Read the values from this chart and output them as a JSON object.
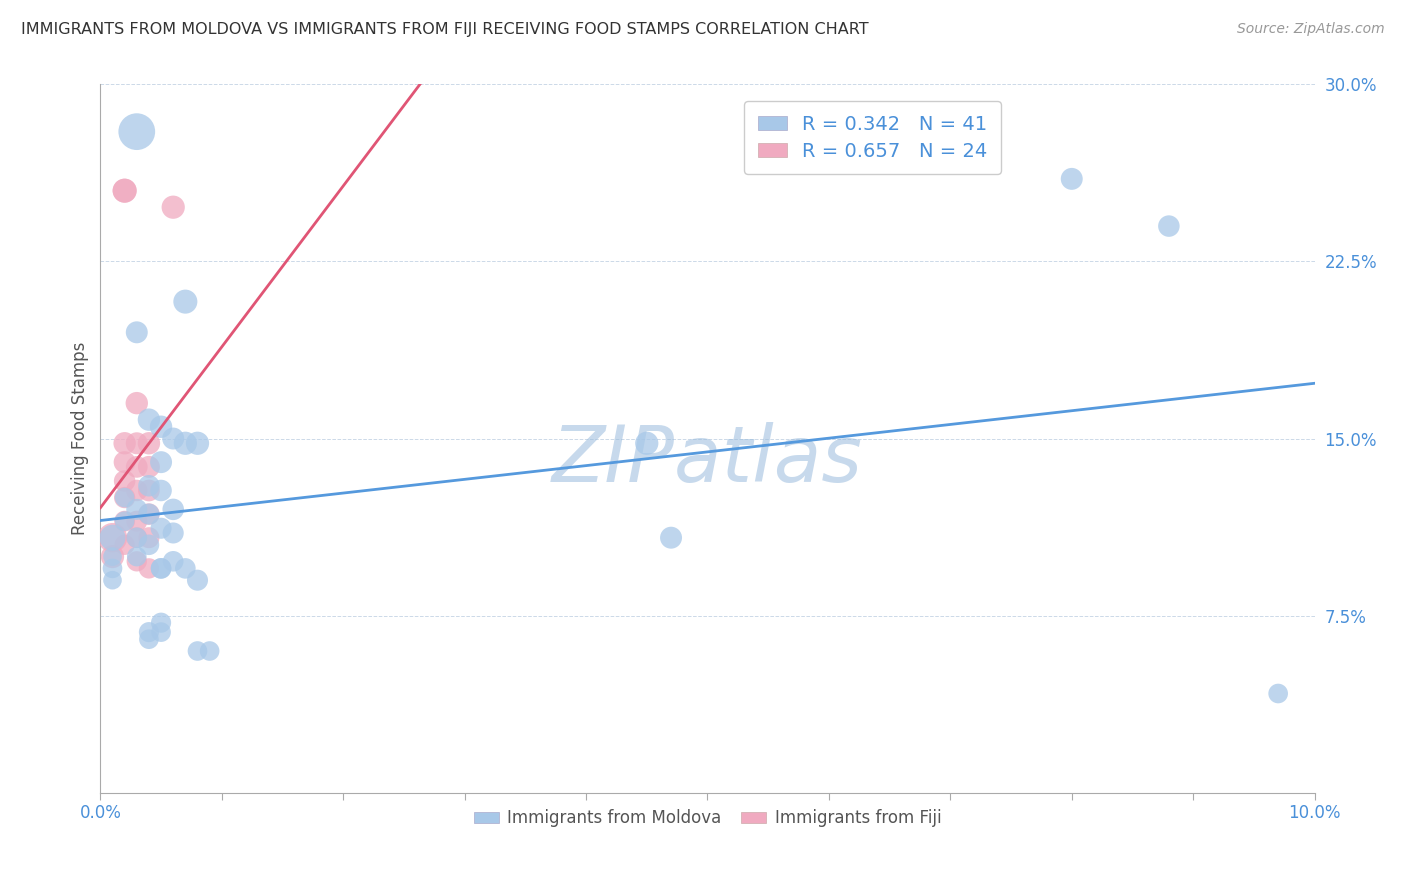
{
  "title": "IMMIGRANTS FROM MOLDOVA VS IMMIGRANTS FROM FIJI RECEIVING FOOD STAMPS CORRELATION CHART",
  "source": "Source: ZipAtlas.com",
  "ylabel": "Receiving Food Stamps",
  "xlim": [
    0.0,
    0.1
  ],
  "ylim": [
    0.0,
    0.3
  ],
  "xtick_positions": [
    0.0,
    0.1
  ],
  "xtick_labels": [
    "0.0%",
    "10.0%"
  ],
  "ytick_positions": [
    0.0,
    0.075,
    0.15,
    0.225,
    0.3
  ],
  "ytick_labels": [
    "",
    "7.5%",
    "15.0%",
    "22.5%",
    "30.0%"
  ],
  "moldova_color": "#a8c8e8",
  "fiji_color": "#f0aac0",
  "moldova_line_color": "#5599dd",
  "fiji_line_color": "#e05575",
  "fiji_dash_color": "#ccaaaa",
  "watermark": "ZIPatlas",
  "watermark_color": "#99bbdd",
  "moldova_R": 0.342,
  "moldova_N": 41,
  "fiji_R": 0.657,
  "fiji_N": 24,
  "moldova_points": [
    [
      0.001,
      0.108
    ],
    [
      0.001,
      0.095
    ],
    [
      0.001,
      0.1
    ],
    [
      0.001,
      0.09
    ],
    [
      0.002,
      0.125
    ],
    [
      0.002,
      0.115
    ],
    [
      0.003,
      0.28
    ],
    [
      0.003,
      0.195
    ],
    [
      0.003,
      0.12
    ],
    [
      0.003,
      0.108
    ],
    [
      0.003,
      0.1
    ],
    [
      0.004,
      0.158
    ],
    [
      0.004,
      0.13
    ],
    [
      0.004,
      0.118
    ],
    [
      0.004,
      0.105
    ],
    [
      0.004,
      0.068
    ],
    [
      0.004,
      0.065
    ],
    [
      0.005,
      0.155
    ],
    [
      0.005,
      0.14
    ],
    [
      0.005,
      0.128
    ],
    [
      0.005,
      0.112
    ],
    [
      0.005,
      0.095
    ],
    [
      0.005,
      0.072
    ],
    [
      0.005,
      0.068
    ],
    [
      0.005,
      0.095
    ],
    [
      0.006,
      0.15
    ],
    [
      0.006,
      0.12
    ],
    [
      0.006,
      0.11
    ],
    [
      0.006,
      0.098
    ],
    [
      0.007,
      0.208
    ],
    [
      0.007,
      0.148
    ],
    [
      0.007,
      0.095
    ],
    [
      0.008,
      0.148
    ],
    [
      0.008,
      0.09
    ],
    [
      0.008,
      0.06
    ],
    [
      0.009,
      0.06
    ],
    [
      0.045,
      0.148
    ],
    [
      0.047,
      0.108
    ],
    [
      0.08,
      0.26
    ],
    [
      0.088,
      0.24
    ],
    [
      0.097,
      0.042
    ]
  ],
  "fiji_points": [
    [
      0.001,
      0.108
    ],
    [
      0.001,
      0.1
    ],
    [
      0.002,
      0.255
    ],
    [
      0.002,
      0.255
    ],
    [
      0.002,
      0.148
    ],
    [
      0.002,
      0.14
    ],
    [
      0.002,
      0.132
    ],
    [
      0.002,
      0.125
    ],
    [
      0.002,
      0.115
    ],
    [
      0.002,
      0.105
    ],
    [
      0.003,
      0.165
    ],
    [
      0.003,
      0.148
    ],
    [
      0.003,
      0.138
    ],
    [
      0.003,
      0.128
    ],
    [
      0.003,
      0.115
    ],
    [
      0.003,
      0.108
    ],
    [
      0.003,
      0.098
    ],
    [
      0.004,
      0.148
    ],
    [
      0.004,
      0.138
    ],
    [
      0.004,
      0.128
    ],
    [
      0.004,
      0.118
    ],
    [
      0.004,
      0.108
    ],
    [
      0.004,
      0.095
    ],
    [
      0.006,
      0.248
    ]
  ],
  "moldova_sizes": [
    350,
    200,
    180,
    180,
    200,
    200,
    700,
    250,
    230,
    220,
    200,
    260,
    240,
    230,
    220,
    210,
    200,
    260,
    250,
    240,
    230,
    220,
    210,
    200,
    220,
    250,
    240,
    230,
    220,
    300,
    280,
    220,
    280,
    230,
    200,
    200,
    280,
    250,
    250,
    240,
    200
  ],
  "fiji_sizes": [
    450,
    280,
    300,
    300,
    260,
    250,
    240,
    235,
    225,
    215,
    260,
    250,
    245,
    240,
    230,
    225,
    215,
    260,
    250,
    245,
    240,
    230,
    215,
    280
  ]
}
